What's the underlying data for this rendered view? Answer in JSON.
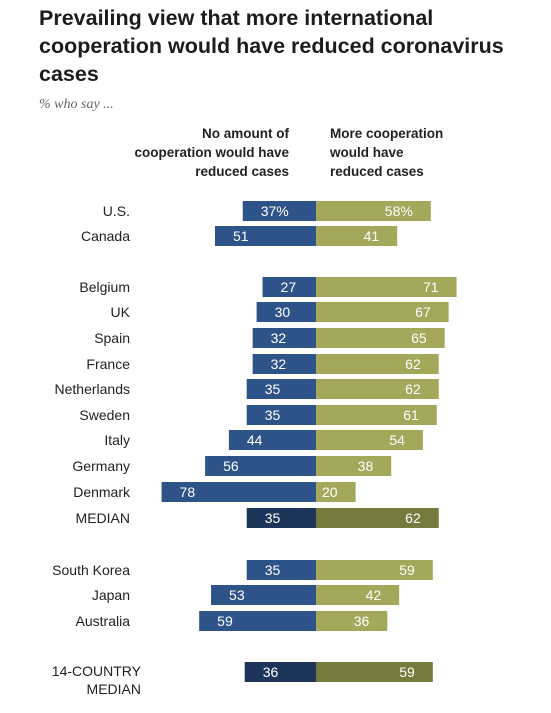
{
  "title": "Prevailing view that more international cooperation would have reduced coronavirus cases",
  "subtitle": "% who say ...",
  "chart_data": {
    "type": "bar",
    "orientation": "horizontal-diverging",
    "series": [
      {
        "name": "No amount of cooperation would have reduced cases",
        "color": "#2e5389",
        "median_color": "#1c3558",
        "values": [
          37,
          51,
          27,
          30,
          32,
          32,
          35,
          35,
          44,
          56,
          78,
          35,
          35,
          53,
          59,
          36
        ]
      },
      {
        "name": "More cooperation would have reduced cases",
        "color": "#a4a85a",
        "median_color": "#767a3c",
        "values": [
          58,
          41,
          71,
          67,
          65,
          62,
          62,
          61,
          54,
          38,
          20,
          62,
          59,
          42,
          36,
          59
        ]
      }
    ],
    "categories": [
      "U.S.",
      "Canada",
      "Belgium",
      "UK",
      "Spain",
      "France",
      "Netherlands",
      "Sweden",
      "Italy",
      "Germany",
      "Denmark",
      "MEDIAN",
      "South Korea",
      "Japan",
      "Australia",
      "14-COUNTRY MEDIAN"
    ],
    "label_suffix_first_row": "%",
    "median_rows": [
      11,
      15
    ],
    "groups": [
      [
        0,
        1
      ],
      [
        2,
        11
      ],
      [
        12,
        14
      ],
      [
        15,
        15
      ]
    ]
  }
}
